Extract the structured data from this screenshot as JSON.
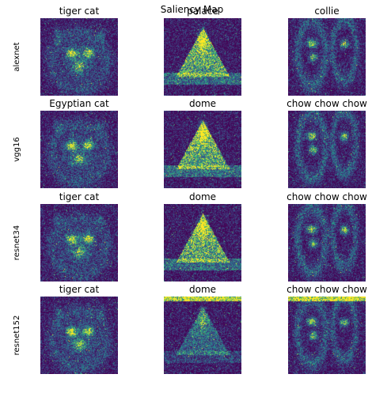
{
  "figure": {
    "title": "Saliency Map"
  },
  "colors": {
    "background": "#440154",
    "low": "#3b528b",
    "mid": "#21918c",
    "high": "#5ec962",
    "peak": "#fde725"
  },
  "chart_data": {
    "type": "heatmap",
    "title": "Saliency Map",
    "colormap": "viridis",
    "rows": [
      {
        "model": "alexnet",
        "predictions": [
          "tiger cat",
          "palace",
          "collie"
        ]
      },
      {
        "model": "vgg16",
        "predictions": [
          "Egyptian cat",
          "dome",
          "chow chow chow"
        ]
      },
      {
        "model": "resnet34",
        "predictions": [
          "tiger cat",
          "dome",
          "chow chow chow"
        ]
      },
      {
        "model": "resnet152",
        "predictions": [
          "tiger cat",
          "dome",
          "chow chow chow"
        ]
      }
    ]
  }
}
